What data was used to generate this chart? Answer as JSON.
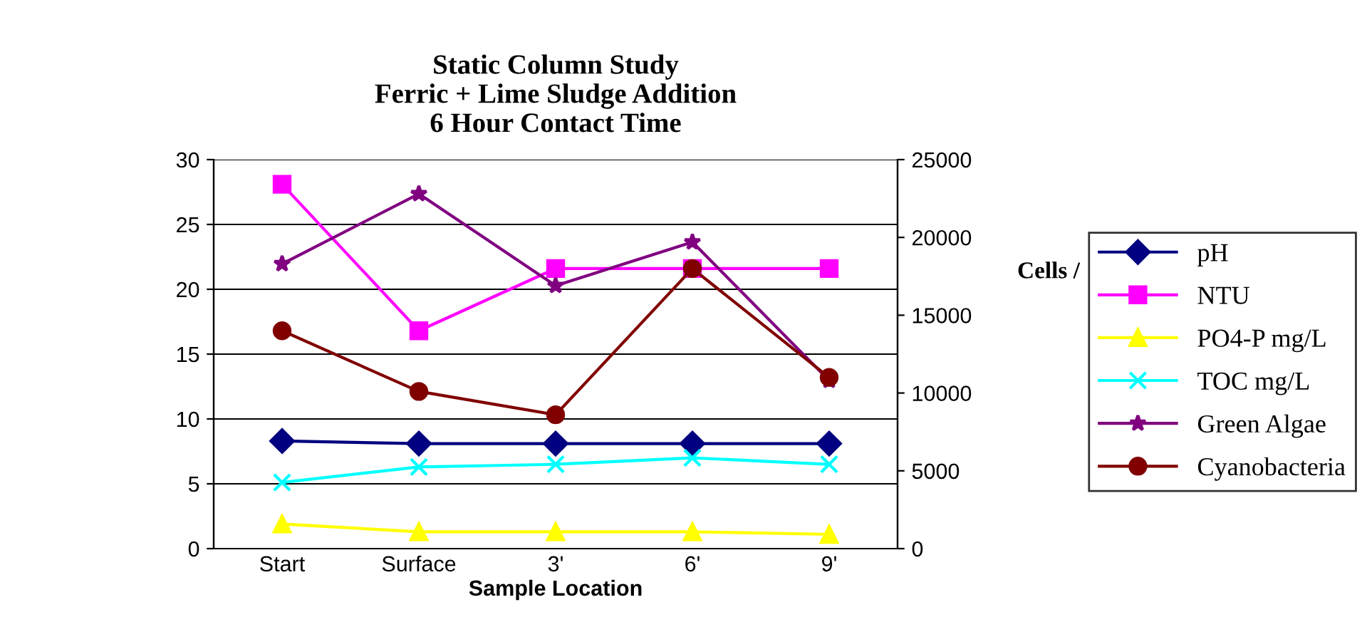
{
  "chart_data": {
    "type": "line",
    "title": "Static Column Study\nFerric + Lime Sludge Addition\n6 Hour Contact Time",
    "xlabel": "Sample Location",
    "y2label": "Cells /",
    "categories": [
      "Start",
      "Surface",
      "3'",
      "6'",
      "9'"
    ],
    "series": [
      {
        "name": "pH",
        "color": "#000080",
        "marker": "diamond",
        "values": [
          8.3,
          8.1,
          8.1,
          8.1,
          8.1
        ]
      },
      {
        "name": "NTU",
        "color": "#ff00ff",
        "marker": "square",
        "values": [
          28.1,
          16.8,
          21.6,
          21.6,
          21.6
        ]
      },
      {
        "name": "PO4-P mg/L",
        "color": "#ffff00",
        "marker": "triangle",
        "values": [
          1.9,
          1.3,
          1.3,
          1.3,
          1.1
        ]
      },
      {
        "name": "TOC mg/L",
        "color": "#00ffff",
        "marker": "cross",
        "values": [
          5.1,
          6.3,
          6.5,
          7.0,
          6.5
        ]
      },
      {
        "name": "Green Algae",
        "color": "#800080",
        "marker": "star",
        "axis": "y2",
        "values": [
          18300,
          22800,
          16900,
          19700,
          10800
        ]
      },
      {
        "name": "Cyanobacteria",
        "color": "#800000",
        "marker": "circle",
        "axis": "y2",
        "values": [
          14000,
          10100,
          8600,
          18000,
          11000
        ]
      }
    ],
    "ylim": [
      0,
      30
    ],
    "yticks": [
      0,
      5,
      10,
      15,
      20,
      25,
      30
    ],
    "y2lim": [
      0,
      25000
    ],
    "y2ticks": [
      0,
      5000,
      10000,
      15000,
      20000,
      25000
    ],
    "grid": "y",
    "legend": "right",
    "line_style": "solid"
  }
}
